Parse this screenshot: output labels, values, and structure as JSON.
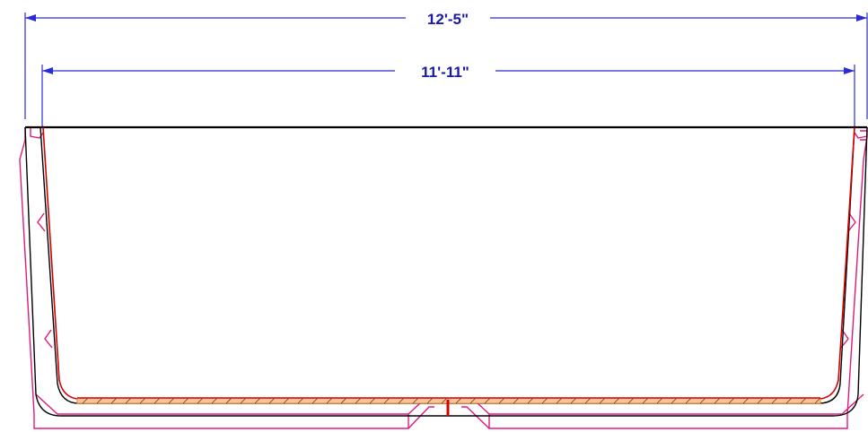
{
  "dimensions": {
    "overall": "12'-5\"",
    "inner": "11'-11\""
  },
  "colors": {
    "dimension_line": "#2b2bd6",
    "dimension_text": "#1a1aa6",
    "outline": "#000000",
    "frame": "#e0197f",
    "inner_wall": "#d40000",
    "floor_hatch": "#ef8a2b"
  }
}
